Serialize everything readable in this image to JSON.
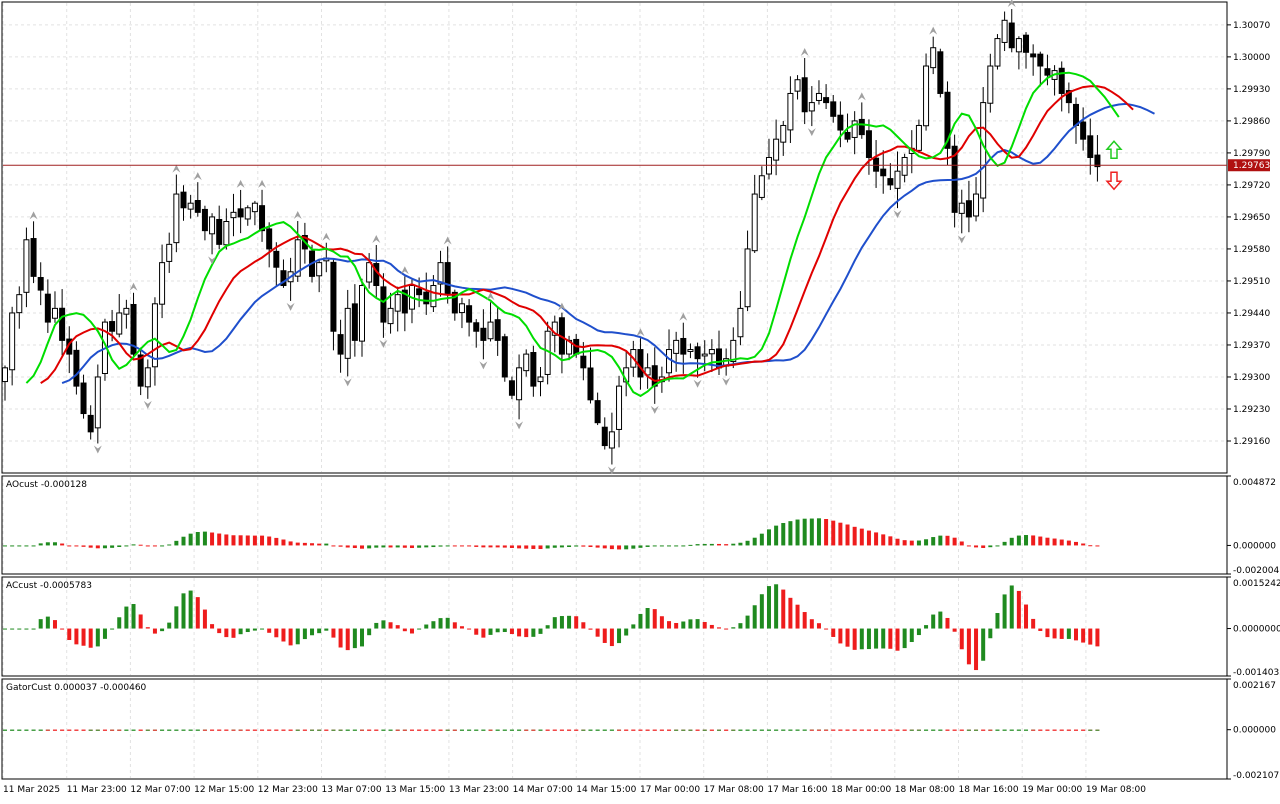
{
  "colors": {
    "background": "#ffffff",
    "grid": "#e2e2e2",
    "candle_bull": "#ffffff",
    "candle_bear": "#000000",
    "wick": "#000000",
    "jaw_line": "#1f4fcc",
    "teeth_line": "#e00000",
    "lips_line": "#00dd00",
    "price_line": "#a02020",
    "price_tag": "#b01010",
    "hist_up": "#1f8a1f",
    "hist_down": "#ee1c1c",
    "fractal": "#a0a0a0",
    "arrow_up": "#22cc22",
    "arrow_down": "#ee2222"
  },
  "chart_data": [
    {
      "type": "candlestick",
      "symbol_note": "",
      "indicators": [
        "Alligator (jaw, teeth, lips)",
        "Fractals"
      ],
      "ylim": [
        1.2909,
        1.3012
      ],
      "price_axis_ticks": [
        "1.30070",
        "1.30000",
        "1.29930",
        "1.29860",
        "1.29790",
        "1.29720",
        "1.29650",
        "1.29580",
        "1.29510",
        "1.29440",
        "1.29370",
        "1.29300",
        "1.29230",
        "1.29160"
      ],
      "price_axis_tick_values": [
        1.3007,
        1.3,
        1.2993,
        1.2986,
        1.2979,
        1.2972,
        1.2965,
        1.2958,
        1.2951,
        1.2944,
        1.2937,
        1.293,
        1.2923,
        1.2916
      ],
      "current_price": "1.29763",
      "current_price_value": 1.29763,
      "time_axis_labels": [
        "11 Mar 2025",
        "11 Mar 23:00",
        "12 Mar 07:00",
        "12 Mar 15:00",
        "12 Mar 23:00",
        "13 Mar 07:00",
        "13 Mar 15:00",
        "13 Mar 23:00",
        "14 Mar 07:00",
        "14 Mar 15:00",
        "17 Mar 00:00",
        "17 Mar 08:00",
        "17 Mar 16:00",
        "18 Mar 00:00",
        "18 Mar 08:00",
        "18 Mar 16:00",
        "19 Mar 00:00",
        "19 Mar 08:00"
      ],
      "closes_approx": [
        1.2932,
        1.2944,
        1.2948,
        1.296,
        1.2952,
        1.2949,
        1.2942,
        1.2945,
        1.2938,
        1.2935,
        1.2928,
        1.2922,
        1.2918,
        1.293,
        1.2942,
        1.294,
        1.2944,
        1.2945,
        1.2935,
        1.2928,
        1.2932,
        1.2946,
        1.2955,
        1.2959,
        1.297,
        1.2967,
        1.2968,
        1.2966,
        1.2962,
        1.2965,
        1.2959,
        1.2964,
        1.2966,
        1.2965,
        1.2967,
        1.2968,
        1.2962,
        1.2958,
        1.2954,
        1.295,
        1.2953,
        1.296,
        1.2958,
        1.2952,
        1.2955,
        1.2956,
        1.294,
        1.2935,
        1.2945,
        1.2938,
        1.295,
        1.2955,
        1.295,
        1.2942,
        1.2945,
        1.2948,
        1.2944,
        1.295,
        1.2948,
        1.2946,
        1.295,
        1.2955,
        1.2948,
        1.2944,
        1.2946,
        1.2942,
        1.294,
        1.2938,
        1.2942,
        1.2938,
        1.293,
        1.2926,
        1.2932,
        1.2935,
        1.2928,
        1.293,
        1.294,
        1.2942,
        1.2935,
        1.2938,
        1.2935,
        1.2932,
        1.2925,
        1.292,
        1.2915,
        1.2918,
        1.2928,
        1.2932,
        1.2936,
        1.293,
        1.2932,
        1.2928,
        1.293,
        1.2936,
        1.2938,
        1.2935,
        1.2936,
        1.2934,
        1.2935,
        1.2936,
        1.2932,
        1.2934,
        1.2938,
        1.2945,
        1.2958,
        1.297,
        1.2974,
        1.2978,
        1.2982,
        1.2985,
        1.2992,
        1.2995,
        1.2988,
        1.299,
        1.2992,
        1.299,
        1.2987,
        1.2984,
        1.2982,
        1.2986,
        1.2983,
        1.2978,
        1.2975,
        1.2974,
        1.2972,
        1.2975,
        1.2978,
        1.298,
        1.2985,
        1.2998,
        1.3002,
        1.2992,
        1.298,
        1.2966,
        1.2968,
        1.2965,
        1.297,
        1.299,
        1.2998,
        1.3004,
        1.3008,
        1.3002,
        1.3004,
        1.3001,
        1.3,
        1.2998,
        1.2996,
        1.2997,
        1.2992,
        1.299,
        1.2985,
        1.2982,
        1.2978,
        1.2976
      ]
    },
    {
      "type": "bar",
      "name": "AOcust",
      "label_value": "-0.000128",
      "ylim": [
        -0.002004,
        0.004872
      ],
      "axis_ticks": [
        "0.004872",
        "0.000000",
        "-0.002004"
      ],
      "axis_tick_values": [
        0.004872,
        0.0,
        -0.002004
      ]
    },
    {
      "type": "bar",
      "name": "ACcust",
      "label_value": "-0.0005783",
      "ylim": [
        -0.0014033,
        0.0015242
      ],
      "axis_ticks": [
        "0.0015242",
        "0.0000000",
        "-0.0014033"
      ],
      "axis_tick_values": [
        0.0015242,
        0.0,
        -0.0014033
      ]
    },
    {
      "type": "bar",
      "name": "GatorCust",
      "label_value": "0.000037 -0.000460",
      "ylim": [
        -0.002107,
        0.002167
      ],
      "axis_ticks": [
        "0.002167",
        "0.000000",
        "-0.002107"
      ],
      "axis_tick_values": [
        0.002167,
        0.0,
        -0.002107
      ]
    }
  ]
}
